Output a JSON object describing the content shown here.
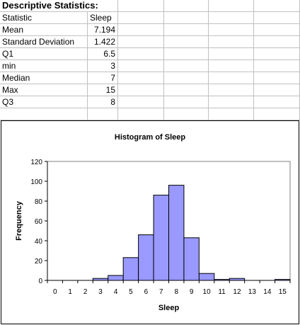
{
  "sheet": {
    "header": {
      "title": "Descriptive Statistics:"
    },
    "columns": [
      "Statistic",
      "Sleep"
    ],
    "rows": [
      {
        "label": "Mean",
        "value": "7.194"
      },
      {
        "label": "Standard Deviation",
        "value": "1.422"
      },
      {
        "label": "Q1",
        "value": "6.5"
      },
      {
        "label": "min",
        "value": "3"
      },
      {
        "label": "Median",
        "value": "7"
      },
      {
        "label": "Max",
        "value": "15"
      },
      {
        "label": "Q3",
        "value": "8"
      }
    ]
  },
  "chart_data": {
    "type": "bar",
    "title": "Histogram of Sleep",
    "xlabel": "Sleep",
    "ylabel": "Frequency",
    "categories": [
      "0",
      "1",
      "2",
      "3",
      "4",
      "5",
      "6",
      "7",
      "8",
      "9",
      "10",
      "11",
      "12",
      "13",
      "14",
      "15"
    ],
    "values": [
      0,
      0,
      0,
      2,
      5,
      23,
      46,
      86,
      96,
      43,
      7,
      1,
      2,
      0,
      0,
      1
    ],
    "ylim": [
      0,
      120
    ],
    "yticks": [
      0,
      20,
      40,
      60,
      80,
      100,
      120
    ],
    "grid": false,
    "legend": "none",
    "bar_color": "#9999ff"
  }
}
